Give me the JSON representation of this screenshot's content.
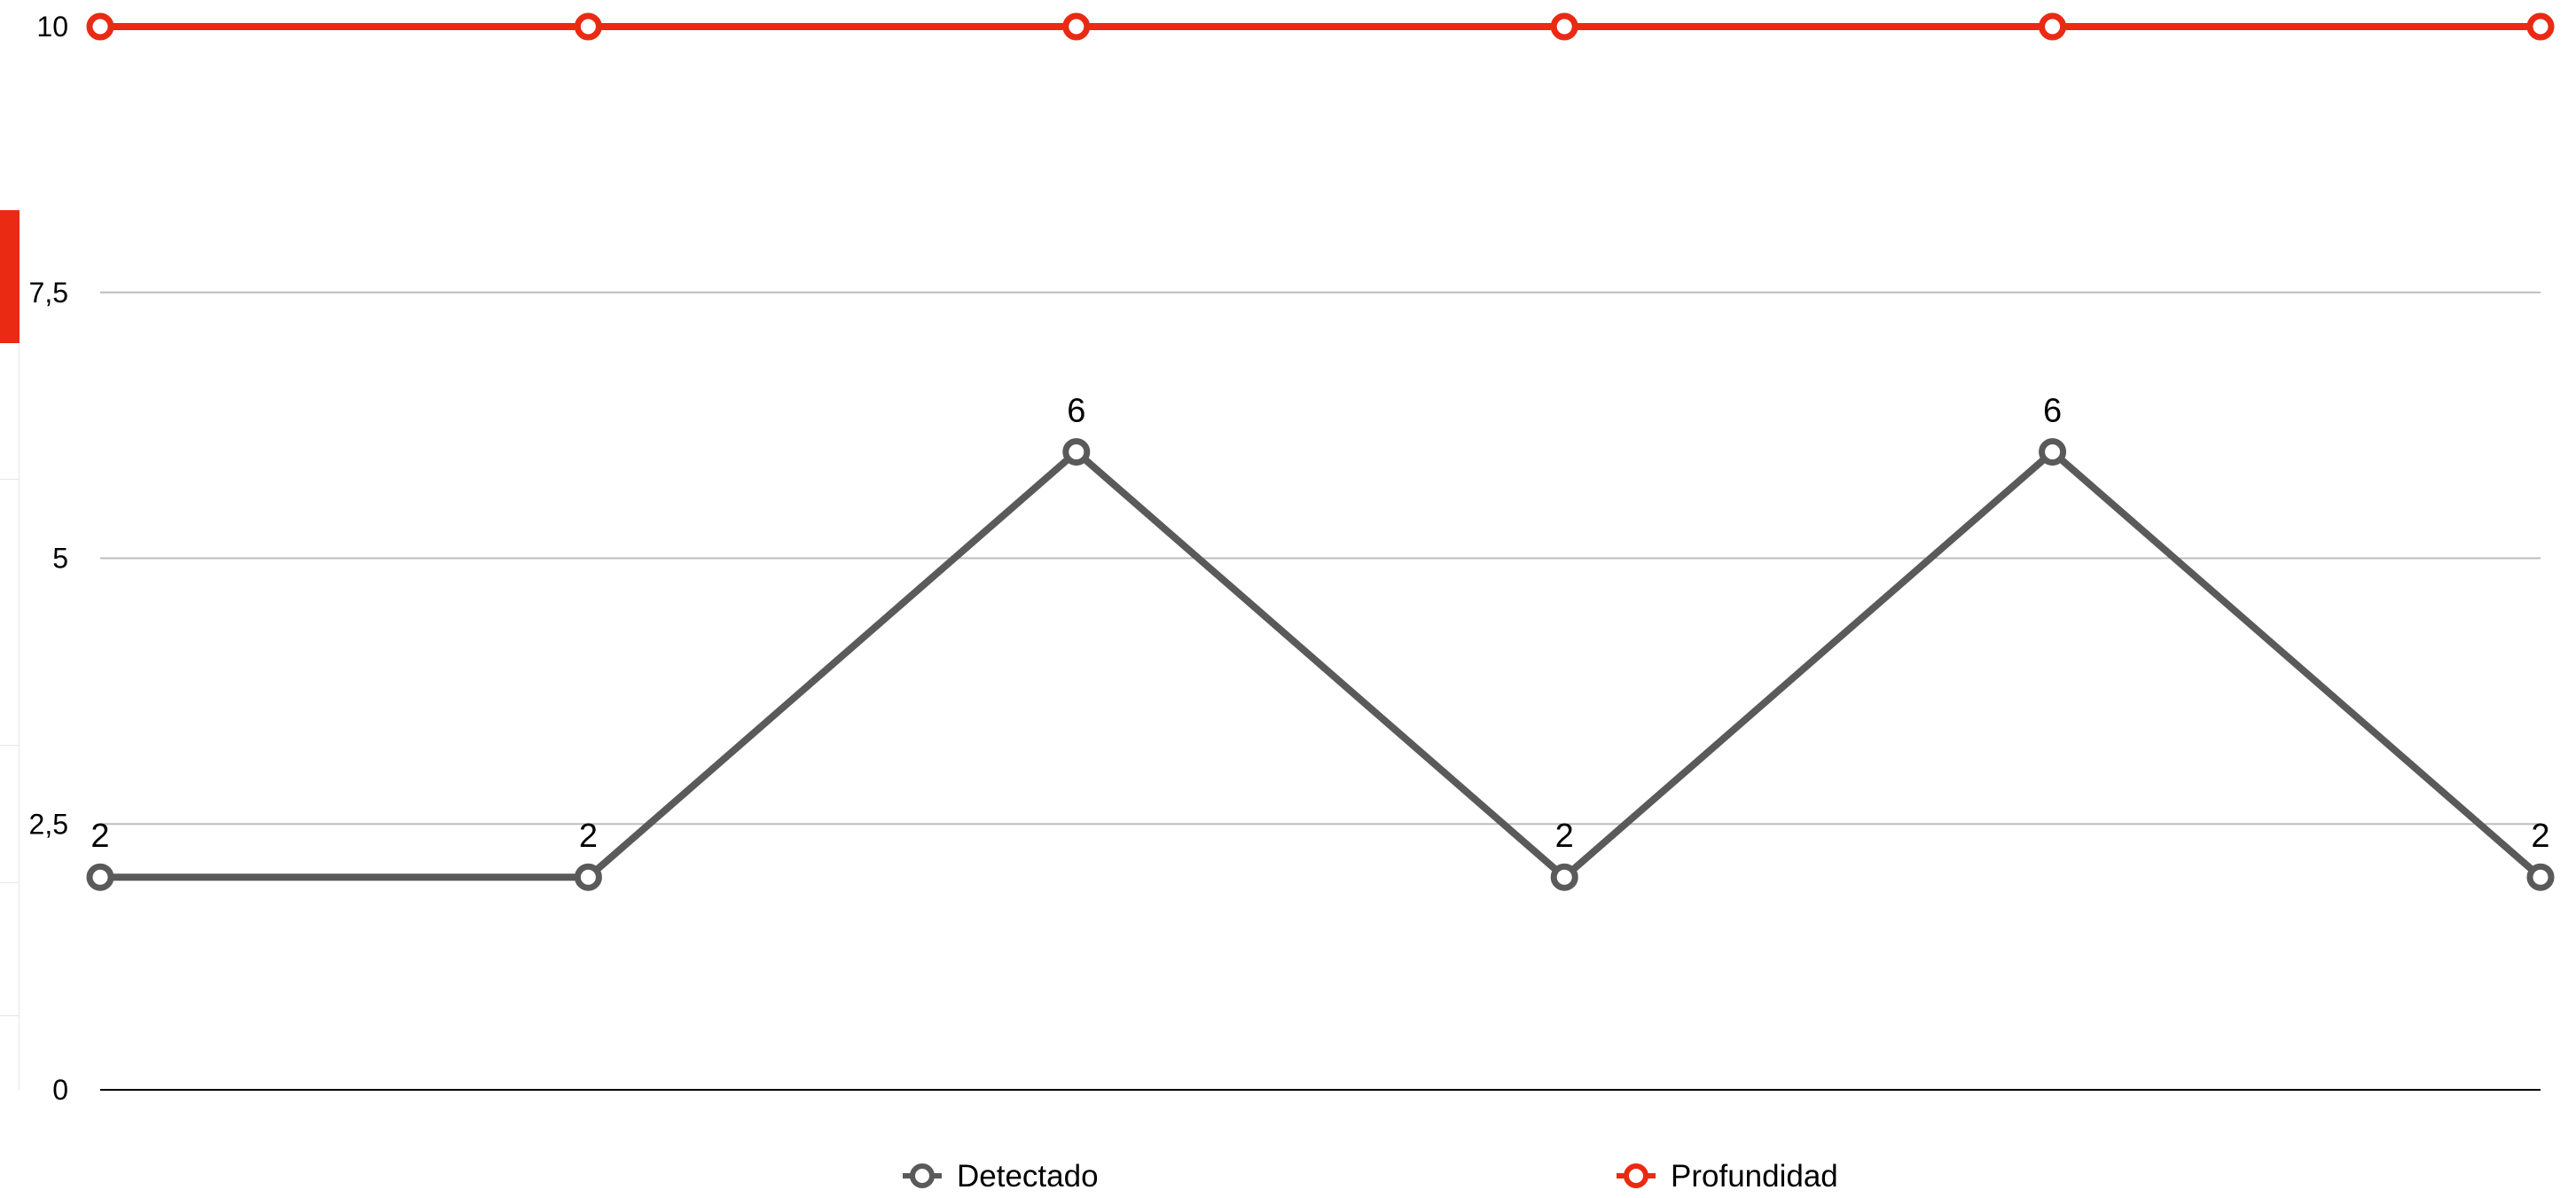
{
  "chart_data": {
    "type": "line",
    "categories": [
      "",
      "",
      "",
      "",
      "",
      ""
    ],
    "ylim": [
      0,
      10
    ],
    "yticks": [
      0,
      2.5,
      5,
      7.5,
      10
    ],
    "ytick_labels": [
      "0",
      "2,5",
      "5",
      "7,5",
      "10"
    ],
    "grid": true,
    "legend_position": "bottom",
    "title": "",
    "xlabel": "",
    "ylabel": "",
    "series": [
      {
        "name": "Detectado",
        "values": [
          2,
          2,
          6,
          2,
          6,
          2
        ],
        "color": "#5a5a5a",
        "show_labels": true
      },
      {
        "name": "Profundidad",
        "values": [
          10,
          10,
          10,
          10,
          10,
          10
        ],
        "color": "#ea2a12",
        "show_labels": false
      }
    ]
  },
  "colors": {
    "grid": "#bdbdbd",
    "axis": "#000000",
    "text": "#000000",
    "accent": "#ea2a12"
  }
}
